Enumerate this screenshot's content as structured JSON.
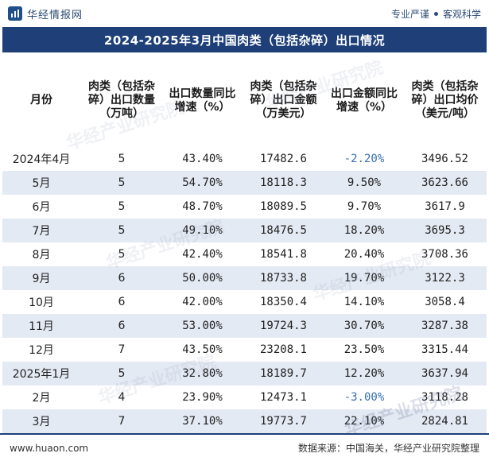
{
  "header": {
    "brand": "华经情报网",
    "tagline_left": "专业严谨",
    "tagline_right": "客观科学"
  },
  "title": "2024-2025年3月中国肉类（包括杂碎）出口情况",
  "table": {
    "columns": [
      "月份",
      "肉类（包括杂碎）出口数量（万吨）",
      "出口数量同比增速（%）",
      "肉类（包括杂碎）出口金额（万美元）",
      "出口金额同比增速（%）",
      "肉类（包括杂碎）出口均价（美元/吨）"
    ],
    "rows": [
      [
        "2024年4月",
        "5",
        "43.40%",
        "17482.6",
        "-2.20%",
        "3496.52"
      ],
      [
        "5月",
        "5",
        "54.70%",
        "18118.3",
        "9.50%",
        "3623.66"
      ],
      [
        "6月",
        "5",
        "48.70%",
        "18089.5",
        "9.70%",
        "3617.9"
      ],
      [
        "7月",
        "5",
        "49.10%",
        "18476.5",
        "18.20%",
        "3695.3"
      ],
      [
        "8月",
        "5",
        "42.40%",
        "18541.8",
        "20.40%",
        "3708.36"
      ],
      [
        "9月",
        "6",
        "50.00%",
        "18733.8",
        "19.70%",
        "3122.3"
      ],
      [
        "10月",
        "6",
        "42.00%",
        "18350.4",
        "14.10%",
        "3058.4"
      ],
      [
        "11月",
        "6",
        "53.00%",
        "19724.3",
        "30.70%",
        "3287.38"
      ],
      [
        "12月",
        "7",
        "43.50%",
        "23208.1",
        "23.50%",
        "3315.44"
      ],
      [
        "2025年1月",
        "5",
        "32.80%",
        "18189.7",
        "12.20%",
        "3637.94"
      ],
      [
        "2月",
        "4",
        "23.90%",
        "12473.1",
        "-3.00%",
        "3118.28"
      ],
      [
        "3月",
        "7",
        "37.10%",
        "19773.7",
        "22.10%",
        "2824.81"
      ]
    ]
  },
  "footer": {
    "website": "www.huaon.com",
    "source": "数据来源：中国海关，华经产业研究院整理"
  },
  "watermark": "华经产业研究院",
  "colors": {
    "title_bg": "#1e3f78",
    "stripe": "#e4eaf3",
    "negative": "#3a6fb0"
  }
}
